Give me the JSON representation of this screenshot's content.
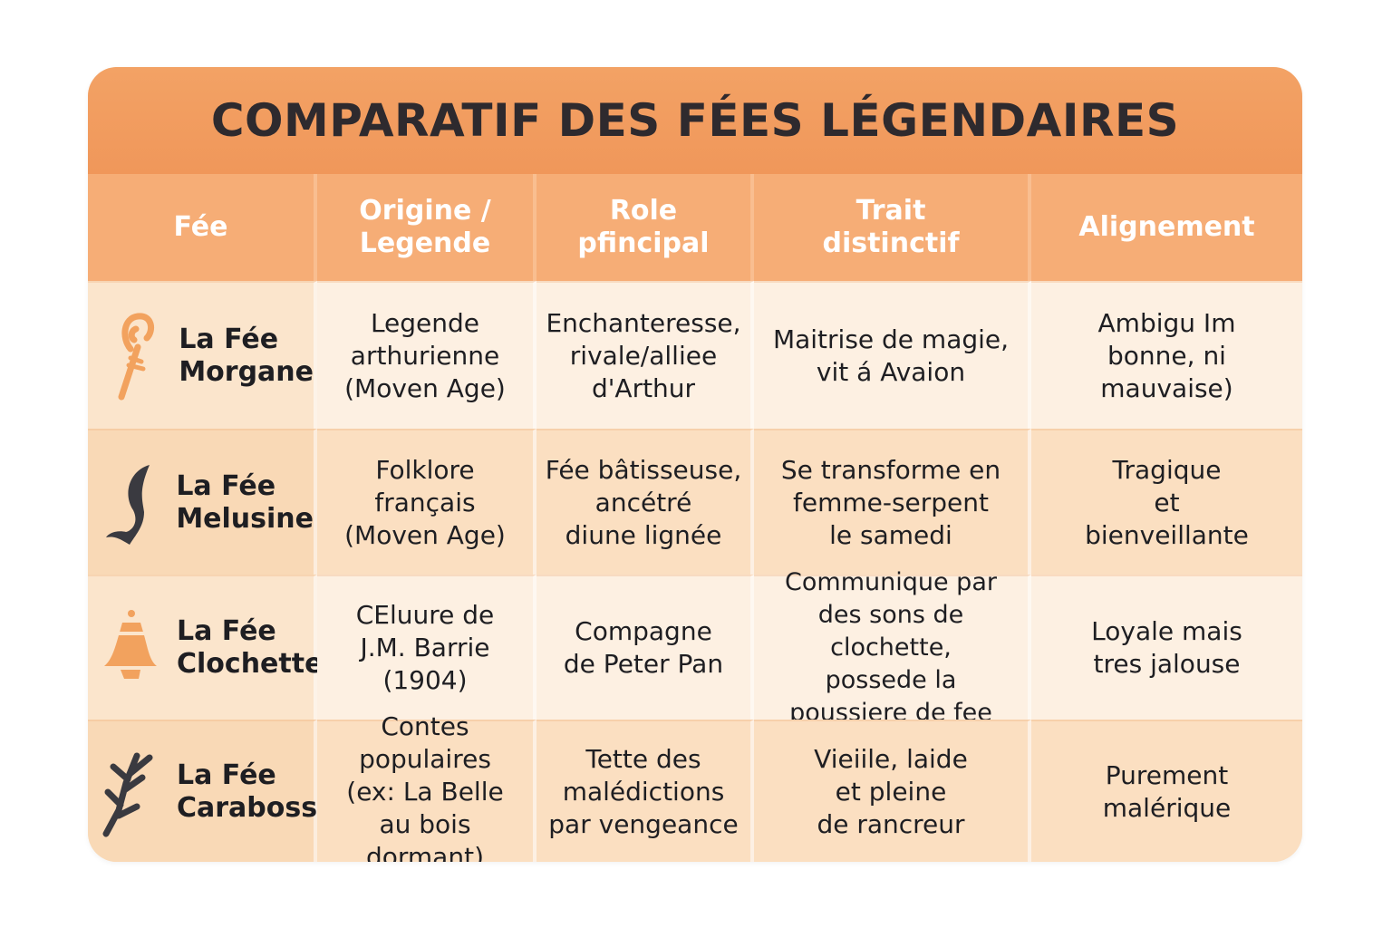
{
  "title": "COMPARATIF DES FÉES LÉGENDAIRES",
  "colors": {
    "title_band": "#f0975a",
    "header": "#f6ad76",
    "row_light": "#fdf0e2",
    "row_dark": "#fbdfc1",
    "text": "#1e1e22"
  },
  "headers": [
    "Fée",
    "Origine /\nLegende",
    "Role\npfincipal",
    "Trait\ndistinctif",
    "Alignement"
  ],
  "rows": [
    {
      "icon": "staff-icon",
      "name": "La Fée\nMorgane",
      "origine": "Legende\narthurienne\n(Moven Age)",
      "role": "Enchanteresse,\nrivale/alliee\nd'Arthur",
      "trait": "Maitrise de magie,\nvit á Avaion\n ",
      "alignement": "Ambigu Im\nbonne, ni\nmauvaise)"
    },
    {
      "icon": "mermaid-tail-icon",
      "name": "La Fée\nMelusine",
      "origine": "Folklore\nfrançais\n(Moven Age)",
      "role": "Fée bâtisseuse,\nancétré\ndiune lignée",
      "trait": "Se transforme en\nfemme-serpent\nle samedi",
      "alignement": "Tragique\net\nbienveillante"
    },
    {
      "icon": "bell-icon",
      "name": "La Fée\nClochette",
      "origine": "CEluure de\nJ.M. Barrie\n(1904)",
      "role": "Compagne\nde Peter Pan\n ",
      "trait": "Communique par\ndes sons de clochette,\npossede la\npoussiere de fee",
      "alignement": "Loyale mais\ntres jalouse\n "
    },
    {
      "icon": "branch-icon",
      "name": "La Fée\nCarabosse",
      "origine": "Contes\npopulaires\n(ex: La Belle\nau bois dormant)",
      "role": "Tette des\nmalédictions\npar vengeance",
      "trait": "Vieiile, laide\net pleine\nde rancreur",
      "alignement": "Purement\nmalérique"
    }
  ]
}
